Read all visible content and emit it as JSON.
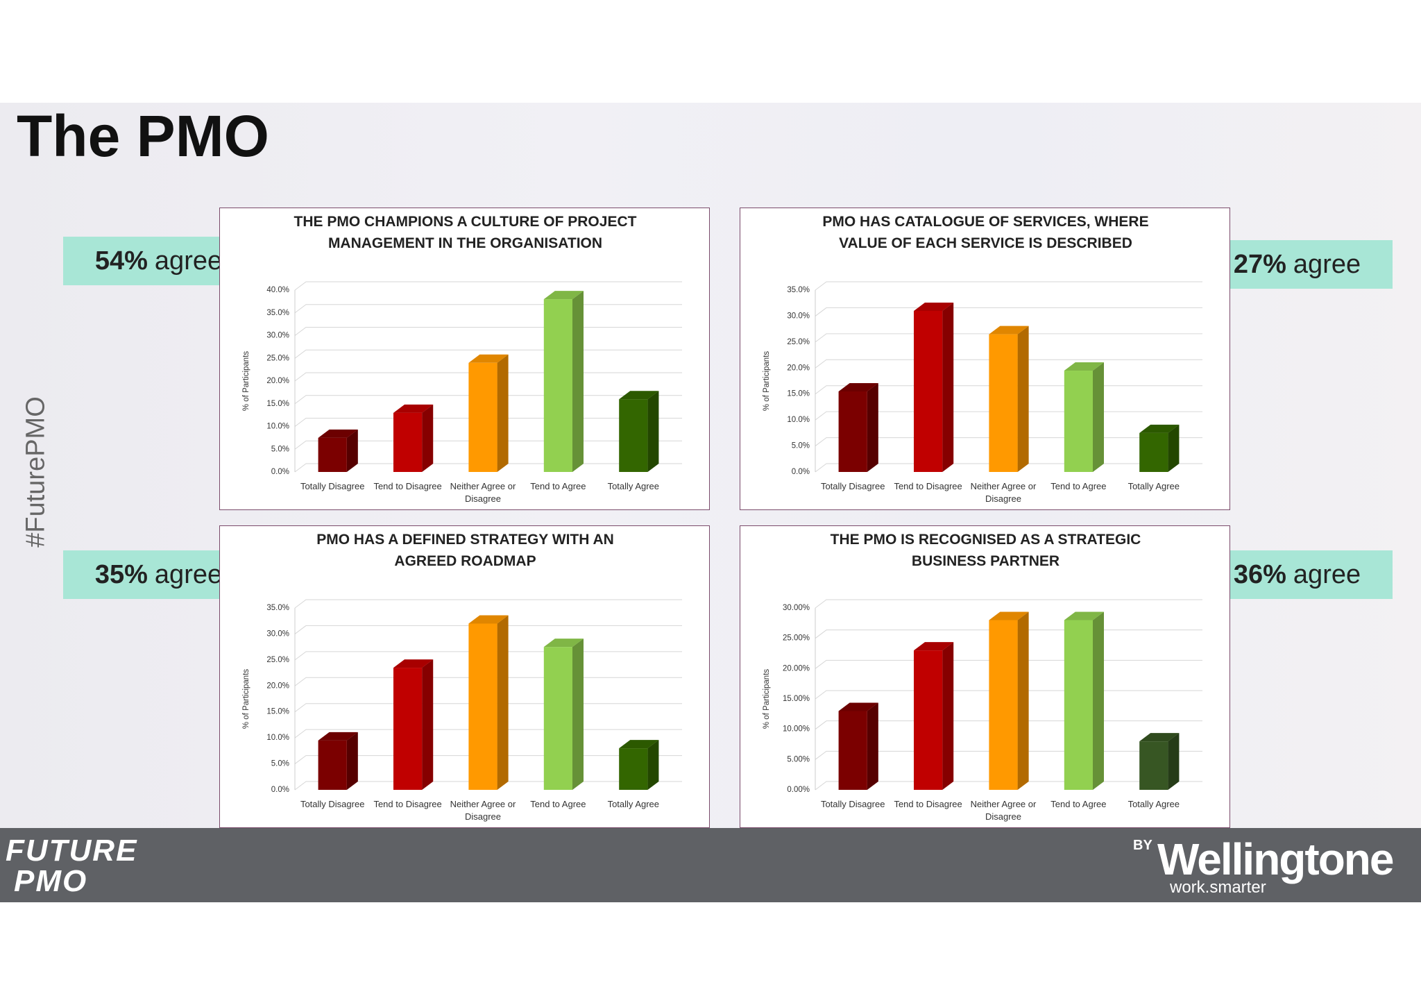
{
  "page": {
    "title": "The PMO",
    "hashtag": "#FuturePMO",
    "badges": [
      {
        "percent": "54%",
        "word": "agree"
      },
      {
        "percent": "27%",
        "word": "agree"
      },
      {
        "percent": "35%",
        "word": "agree"
      },
      {
        "percent": "36%",
        "word": "agree"
      }
    ],
    "footer": {
      "logo_top": "FUTURE",
      "logo_bottom": "PMO",
      "by": "BY",
      "brand": "Wellingtone",
      "tagline": "work.smarter"
    }
  },
  "chart_data": [
    {
      "type": "bar",
      "title": "THE PMO CHAMPIONS A CULTURE OF PROJECT MANAGEMENT IN THE ORGANISATION",
      "ylabel": "% of Participants",
      "categories": [
        "Totally Disagree",
        "Tend to Disagree",
        "Neither Agree or Disagree",
        "Tend to Agree",
        "Totally Agree"
      ],
      "values": [
        7.5,
        13,
        24,
        38,
        16
      ],
      "colors": [
        "#7b0000",
        "#c00000",
        "#ff9900",
        "#92d050",
        "#336600"
      ],
      "ylim": [
        0,
        40
      ],
      "yticks": [
        {
          "value": 0,
          "label": "0.0%"
        },
        {
          "value": 5,
          "label": "5.0%"
        },
        {
          "value": 10,
          "label": "10.0%"
        },
        {
          "value": 15,
          "label": "15.0%"
        },
        {
          "value": 20,
          "label": "20.0%"
        },
        {
          "value": 25,
          "label": "25.0%"
        },
        {
          "value": 30,
          "label": "30.0%"
        },
        {
          "value": 35,
          "label": "35.0%"
        },
        {
          "value": 40,
          "label": "40.0%"
        }
      ],
      "grid": true
    },
    {
      "type": "bar",
      "title": "PMO HAS CATALOGUE OF SERVICES, WHERE VALUE OF EACH SERVICE IS DESCRIBED",
      "ylabel": "% of Participants",
      "categories": [
        "Totally Disagree",
        "Tend to Disagree",
        "Neither Agree or Disagree",
        "Tend to Agree",
        "Totally Agree"
      ],
      "values": [
        15.5,
        31,
        26.5,
        19.5,
        7.5
      ],
      "colors": [
        "#7b0000",
        "#c00000",
        "#ff9900",
        "#92d050",
        "#336600"
      ],
      "ylim": [
        0,
        35
      ],
      "yticks": [
        {
          "value": 0,
          "label": "0.0%"
        },
        {
          "value": 5,
          "label": "5.0%"
        },
        {
          "value": 10,
          "label": "10.0%"
        },
        {
          "value": 15,
          "label": "15.0%"
        },
        {
          "value": 20,
          "label": "20.0%"
        },
        {
          "value": 25,
          "label": "25.0%"
        },
        {
          "value": 30,
          "label": "30.0%"
        },
        {
          "value": 35,
          "label": "35.0%"
        }
      ],
      "grid": true
    },
    {
      "type": "bar",
      "title": "PMO HAS A DEFINED STRATEGY WITH AN AGREED ROADMAP",
      "ylabel": "% of Participants",
      "categories": [
        "Totally Disagree",
        "Tend to Disagree",
        "Neither Agree or Disagree",
        "Tend to Agree",
        "Totally Agree"
      ],
      "values": [
        9.5,
        23.5,
        32,
        27.5,
        8
      ],
      "colors": [
        "#7b0000",
        "#c00000",
        "#ff9900",
        "#92d050",
        "#336600"
      ],
      "ylim": [
        0,
        35
      ],
      "yticks": [
        {
          "value": 0,
          "label": "0.0%"
        },
        {
          "value": 5,
          "label": "5.0%"
        },
        {
          "value": 10,
          "label": "10.0%"
        },
        {
          "value": 15,
          "label": "15.0%"
        },
        {
          "value": 20,
          "label": "20.0%"
        },
        {
          "value": 25,
          "label": "25.0%"
        },
        {
          "value": 30,
          "label": "30.0%"
        },
        {
          "value": 35,
          "label": "35.0%"
        }
      ],
      "grid": true
    },
    {
      "type": "bar",
      "title": "THE PMO IS RECOGNISED AS A STRATEGIC BUSINESS PARTNER",
      "ylabel": "% of Participants",
      "categories": [
        "Totally Disagree",
        "Tend to Disagree",
        "Neither Agree or Disagree",
        "Tend to Agree",
        "Totally Agree"
      ],
      "values": [
        13,
        23,
        28,
        28,
        8
      ],
      "colors": [
        "#7b0000",
        "#c00000",
        "#ff9900",
        "#92d050",
        "#375623"
      ],
      "ylim": [
        0,
        30
      ],
      "yticks": [
        {
          "value": 0,
          "label": "0.00%"
        },
        {
          "value": 5,
          "label": "5.00%"
        },
        {
          "value": 10,
          "label": "10.00%"
        },
        {
          "value": 15,
          "label": "15.00%"
        },
        {
          "value": 20,
          "label": "20.00%"
        },
        {
          "value": 25,
          "label": "25.00%"
        },
        {
          "value": 30,
          "label": "30.00%"
        }
      ],
      "grid": true
    }
  ]
}
